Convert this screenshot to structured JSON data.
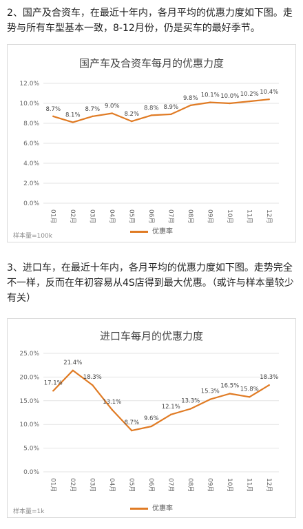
{
  "intro1": "2、国产及合资车，在最近十年内，各月平均的优惠力度如下图。走势与所有车型基本一致，8-12月份，仍是买车的最好季节。",
  "intro2": "3、进口车，在最近十年内，各月平均的优惠力度如下图。走势完全不一样，反而在年初容易从4S店得到最大优惠。（或许与样本量较少有关）",
  "line_color": "#e07b24",
  "chart_data": [
    {
      "type": "line",
      "title": "国产车及合资车每月的优惠力度",
      "categories": [
        "01月",
        "02月",
        "03月",
        "04月",
        "05月",
        "06月",
        "07月",
        "08月",
        "09月",
        "10月",
        "11月",
        "12月"
      ],
      "series": [
        {
          "name": "优惠率",
          "values": [
            8.7,
            8.1,
            8.7,
            9.0,
            8.2,
            8.8,
            8.9,
            9.8,
            10.1,
            10.0,
            10.2,
            10.4
          ],
          "labels": [
            "8.7%",
            "8.1%",
            "8.7%",
            "9.0%",
            "8.2%",
            "8.8%",
            "8.9%",
            "9.8%",
            "10.1%",
            "10.0%",
            "10.2%",
            "10.4%"
          ]
        }
      ],
      "yticks": [
        "0.0%",
        "2.0%",
        "4.0%",
        "6.0%",
        "8.0%",
        "10.0%",
        "12.0%"
      ],
      "ylim": [
        0,
        12
      ],
      "legend_position": "bottom",
      "note": "样本量=100k"
    },
    {
      "type": "line",
      "title": "进口车每月的优惠力度",
      "categories": [
        "01月",
        "02月",
        "03月",
        "04月",
        "05月",
        "06月",
        "07月",
        "08月",
        "09月",
        "10月",
        "11月",
        "12月"
      ],
      "series": [
        {
          "name": "优惠率",
          "values": [
            17.1,
            21.4,
            18.3,
            13.1,
            8.7,
            9.6,
            12.1,
            13.3,
            15.3,
            16.5,
            15.8,
            18.3
          ],
          "labels": [
            "17.1%",
            "21.4%",
            "18.3%",
            "13.1%",
            "8.7%",
            "9.6%",
            "12.1%",
            "13.3%",
            "15.3%",
            "16.5%",
            "15.8%",
            "18.3%"
          ]
        }
      ],
      "yticks": [
        "0.0%",
        "5.0%",
        "10.0%",
        "15.0%",
        "20.0%",
        "25.0%"
      ],
      "ylim": [
        0,
        25
      ],
      "legend_position": "bottom",
      "note": "样本量=1k"
    }
  ]
}
